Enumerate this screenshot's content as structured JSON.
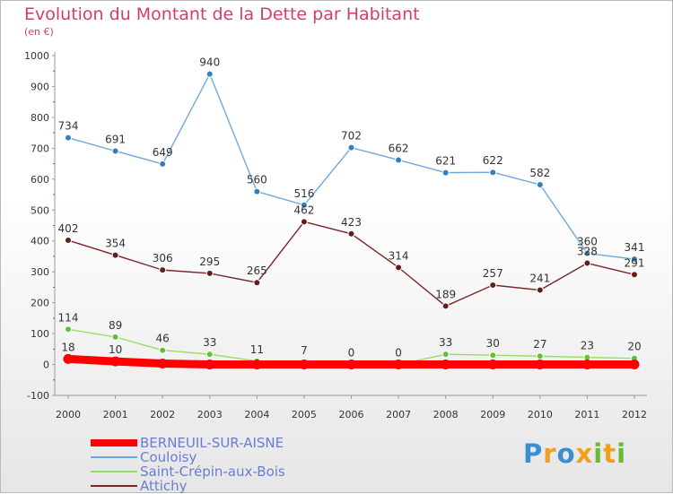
{
  "title": "Evolution du Montant de la Dette par Habitant",
  "subtitle": "(en €)",
  "chart_data": {
    "type": "line",
    "categories": [
      "2000",
      "2001",
      "2002",
      "2003",
      "2004",
      "2005",
      "2006",
      "2007",
      "2008",
      "2009",
      "2010",
      "2011",
      "2012"
    ],
    "ylim": [
      -100,
      1000
    ],
    "yticks": [
      -100,
      0,
      100,
      200,
      300,
      400,
      500,
      600,
      700,
      800,
      900,
      1000
    ],
    "grid": false,
    "legend_position": "bottom-left",
    "series": [
      {
        "name": "BERNEUIL-SUR-AISNE",
        "color": "#ff0000",
        "values": [
          18,
          10,
          3,
          0,
          0,
          0,
          0,
          0,
          0,
          0,
          0,
          0,
          0
        ],
        "labels": [
          "18",
          "10",
          "",
          "",
          "",
          "",
          "",
          "",
          "",
          "",
          "",
          "",
          ""
        ],
        "bold": true
      },
      {
        "name": "Couloisy",
        "color": "#6fa8dc",
        "marker": "#2f7fc1",
        "values": [
          734,
          691,
          649,
          940,
          560,
          516,
          702,
          662,
          621,
          622,
          582,
          360,
          341
        ],
        "labels": [
          "734",
          "691",
          "649",
          "940",
          "560",
          "516",
          "702",
          "662",
          "621",
          "622",
          "582",
          "360",
          "341"
        ]
      },
      {
        "name": "Saint-Crépin-aux-Bois",
        "color": "#99dd66",
        "marker": "#66c033",
        "values": [
          114,
          89,
          46,
          33,
          11,
          7,
          0,
          0,
          33,
          30,
          27,
          23,
          20
        ],
        "labels": [
          "114",
          "89",
          "46",
          "33",
          "11",
          "7",
          "0",
          "0",
          "33",
          "30",
          "27",
          "23",
          "20"
        ]
      },
      {
        "name": "Attichy",
        "color": "#7a2626",
        "marker": "#641c1c",
        "values": [
          402,
          354,
          306,
          295,
          265,
          462,
          423,
          314,
          189,
          257,
          241,
          328,
          291
        ],
        "labels": [
          "402",
          "354",
          "306",
          "295",
          "265",
          "462",
          "423",
          "314",
          "189",
          "257",
          "241",
          "328",
          "291"
        ]
      }
    ]
  },
  "brand": {
    "letters": [
      {
        "ch": "P",
        "color": "#3a8fd4"
      },
      {
        "ch": "r",
        "color": "#f0a020"
      },
      {
        "ch": "o",
        "color": "#3a8fd4"
      },
      {
        "ch": "x",
        "color": "#f0a020"
      },
      {
        "ch": "i",
        "color": "#66bb33"
      },
      {
        "ch": "t",
        "color": "#f0a020"
      },
      {
        "ch": "i",
        "color": "#66bb33"
      }
    ]
  }
}
